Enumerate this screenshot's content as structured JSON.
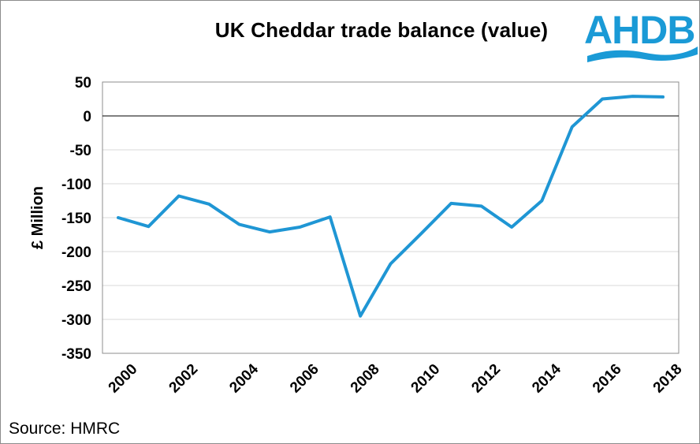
{
  "source": "Source: HMRC",
  "logo": {
    "text": "AHDB",
    "color": "#1a9ad6"
  },
  "chart_data": {
    "type": "line",
    "title": "UK Cheddar trade balance (value)",
    "ylabel": "£ Million",
    "xlabel": "",
    "ylim": [
      -350,
      50
    ],
    "yticks": [
      50,
      0,
      -50,
      -100,
      -150,
      -200,
      -250,
      -300,
      -350
    ],
    "xticks": [
      "2000",
      "2002",
      "2004",
      "2006",
      "2008",
      "2010",
      "2012",
      "2014",
      "2016",
      "2018"
    ],
    "grid": true,
    "line_color": "#1f96d4",
    "series": [
      {
        "x": [
          2000,
          2001,
          2002,
          2003,
          2004,
          2005,
          2006,
          2007,
          2008,
          2009,
          2010,
          2011,
          2012,
          2013,
          2014,
          2015,
          2016,
          2017,
          2018
        ],
        "values": [
          -150,
          -163,
          -118,
          -130,
          -160,
          -171,
          -164,
          -149,
          -295,
          -218,
          -174,
          -129,
          -133,
          -164,
          -125,
          -16,
          25,
          29,
          28
        ]
      }
    ]
  }
}
